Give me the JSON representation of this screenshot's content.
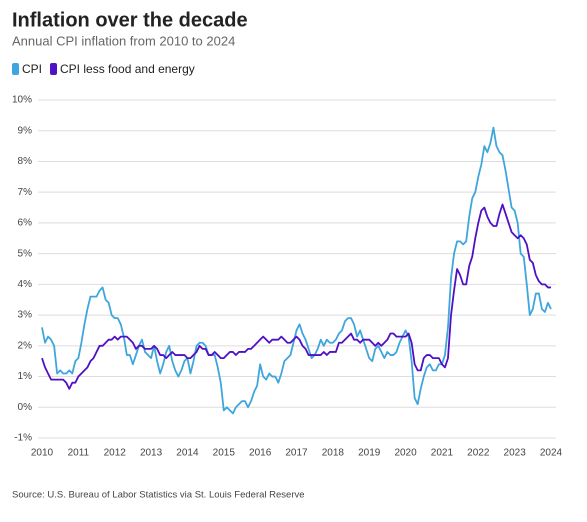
{
  "chart_data": {
    "type": "line",
    "title": "Inflation over the decade",
    "subtitle": "Annual CPI inflation from 2010 to 2024",
    "source": "Source: U.S. Bureau of Labor Statistics via St. Louis Federal Reserve",
    "categories": [
      "2010",
      null,
      null,
      null,
      null,
      null,
      null,
      null,
      null,
      null,
      null,
      null,
      "2011",
      null,
      null,
      null,
      null,
      null,
      null,
      null,
      null,
      null,
      null,
      null,
      "2012",
      null,
      null,
      null,
      null,
      null,
      null,
      null,
      null,
      null,
      null,
      null,
      "2013",
      null,
      null,
      null,
      null,
      null,
      null,
      null,
      null,
      null,
      null,
      null,
      "2014",
      null,
      null,
      null,
      null,
      null,
      null,
      null,
      null,
      null,
      null,
      null,
      "2015",
      null,
      null,
      null,
      null,
      null,
      null,
      null,
      null,
      null,
      null,
      null,
      "2016",
      null,
      null,
      null,
      null,
      null,
      null,
      null,
      null,
      null,
      null,
      null,
      "2017",
      null,
      null,
      null,
      null,
      null,
      null,
      null,
      null,
      null,
      null,
      null,
      "2018",
      null,
      null,
      null,
      null,
      null,
      null,
      null,
      null,
      null,
      null,
      null,
      "2019",
      null,
      null,
      null,
      null,
      null,
      null,
      null,
      null,
      null,
      null,
      null,
      "2020",
      null,
      null,
      null,
      null,
      null,
      null,
      null,
      null,
      null,
      null,
      null,
      "2021",
      null,
      null,
      null,
      null,
      null,
      null,
      null,
      null,
      null,
      null,
      null,
      "2022",
      null,
      null,
      null,
      null,
      null,
      null,
      null,
      null,
      null,
      null,
      null,
      "2023",
      null,
      null,
      null,
      null,
      null,
      null,
      null,
      null,
      null,
      null,
      null,
      "2024"
    ],
    "series": [
      {
        "name": "CPI",
        "color": "#3fa6dd",
        "values": [
          2.6,
          2.1,
          2.3,
          2.2,
          2.0,
          1.1,
          1.2,
          1.1,
          1.1,
          1.2,
          1.1,
          1.5,
          1.6,
          2.1,
          2.7,
          3.2,
          3.6,
          3.6,
          3.6,
          3.8,
          3.9,
          3.5,
          3.4,
          3.0,
          2.9,
          2.9,
          2.7,
          2.3,
          1.7,
          1.7,
          1.4,
          1.7,
          2.0,
          2.2,
          1.8,
          1.7,
          1.6,
          2.0,
          1.5,
          1.1,
          1.4,
          1.8,
          2.0,
          1.5,
          1.2,
          1.0,
          1.2,
          1.5,
          1.6,
          1.1,
          1.5,
          2.0,
          2.1,
          2.1,
          2.0,
          1.7,
          1.7,
          1.7,
          1.3,
          0.8,
          -0.1,
          0.0,
          -0.1,
          -0.2,
          0.0,
          0.1,
          0.2,
          0.2,
          0.0,
          0.2,
          0.5,
          0.7,
          1.4,
          1.0,
          0.9,
          1.1,
          1.0,
          1.0,
          0.8,
          1.1,
          1.5,
          1.6,
          1.7,
          2.1,
          2.5,
          2.7,
          2.4,
          2.2,
          1.9,
          1.6,
          1.7,
          1.9,
          2.2,
          2.0,
          2.2,
          2.1,
          2.1,
          2.2,
          2.4,
          2.5,
          2.8,
          2.9,
          2.9,
          2.7,
          2.3,
          2.5,
          2.2,
          1.9,
          1.6,
          1.5,
          1.9,
          2.0,
          1.8,
          1.6,
          1.8,
          1.7,
          1.7,
          1.8,
          2.1,
          2.3,
          2.5,
          2.3,
          1.5,
          0.3,
          0.1,
          0.6,
          1.0,
          1.3,
          1.4,
          1.2,
          1.2,
          1.4,
          1.4,
          1.7,
          2.6,
          4.2,
          5.0,
          5.4,
          5.4,
          5.3,
          5.4,
          6.2,
          6.8,
          7.0,
          7.5,
          7.9,
          8.5,
          8.3,
          8.6,
          9.1,
          8.5,
          8.3,
          8.2,
          7.7,
          7.1,
          6.5,
          6.4,
          6.0,
          5.0,
          4.9,
          4.0,
          3.0,
          3.2,
          3.7,
          3.7,
          3.2,
          3.1,
          3.4,
          3.2
        ]
      },
      {
        "name": "CPI less food and energy",
        "color": "#5010c4",
        "values": [
          1.6,
          1.3,
          1.1,
          0.9,
          0.9,
          0.9,
          0.9,
          0.9,
          0.8,
          0.6,
          0.8,
          0.8,
          1.0,
          1.1,
          1.2,
          1.3,
          1.5,
          1.6,
          1.8,
          2.0,
          2.0,
          2.1,
          2.2,
          2.2,
          2.3,
          2.2,
          2.3,
          2.3,
          2.3,
          2.2,
          2.1,
          1.9,
          2.0,
          2.0,
          1.9,
          1.9,
          1.9,
          2.0,
          1.9,
          1.7,
          1.7,
          1.6,
          1.7,
          1.8,
          1.7,
          1.7,
          1.7,
          1.7,
          1.6,
          1.6,
          1.7,
          1.8,
          2.0,
          1.9,
          1.9,
          1.7,
          1.7,
          1.8,
          1.7,
          1.6,
          1.6,
          1.7,
          1.8,
          1.8,
          1.7,
          1.8,
          1.8,
          1.8,
          1.9,
          1.9,
          2.0,
          2.1,
          2.2,
          2.3,
          2.2,
          2.1,
          2.2,
          2.2,
          2.2,
          2.3,
          2.2,
          2.1,
          2.1,
          2.2,
          2.3,
          2.2,
          2.0,
          1.9,
          1.7,
          1.7,
          1.7,
          1.7,
          1.7,
          1.8,
          1.7,
          1.8,
          1.8,
          1.8,
          2.1,
          2.1,
          2.2,
          2.3,
          2.4,
          2.2,
          2.2,
          2.1,
          2.2,
          2.2,
          2.2,
          2.1,
          2.0,
          2.1,
          2.0,
          2.1,
          2.2,
          2.4,
          2.4,
          2.3,
          2.3,
          2.3,
          2.3,
          2.4,
          2.1,
          1.4,
          1.2,
          1.2,
          1.6,
          1.7,
          1.7,
          1.6,
          1.6,
          1.6,
          1.4,
          1.3,
          1.6,
          3.0,
          3.8,
          4.5,
          4.3,
          4.0,
          4.0,
          4.6,
          4.9,
          5.5,
          6.0,
          6.4,
          6.5,
          6.2,
          6.0,
          5.9,
          5.9,
          6.3,
          6.6,
          6.3,
          6.0,
          5.7,
          5.6,
          5.5,
          5.6,
          5.5,
          5.3,
          4.8,
          4.7,
          4.3,
          4.1,
          4.0,
          4.0,
          3.9,
          3.9
        ]
      }
    ],
    "ylim": [
      -1,
      10
    ],
    "yticks": [
      {
        "value": -1,
        "label": "-1%"
      },
      {
        "value": 0,
        "label": "0%"
      },
      {
        "value": 1,
        "label": "1%"
      },
      {
        "value": 2,
        "label": "2%"
      },
      {
        "value": 3,
        "label": "3%"
      },
      {
        "value": 4,
        "label": "4%"
      },
      {
        "value": 5,
        "label": "5%"
      },
      {
        "value": 6,
        "label": "6%"
      },
      {
        "value": 7,
        "label": "7%"
      },
      {
        "value": 8,
        "label": "8%"
      },
      {
        "value": 9,
        "label": "9%"
      },
      {
        "value": 10,
        "label": "10%"
      }
    ],
    "grid": true
  }
}
